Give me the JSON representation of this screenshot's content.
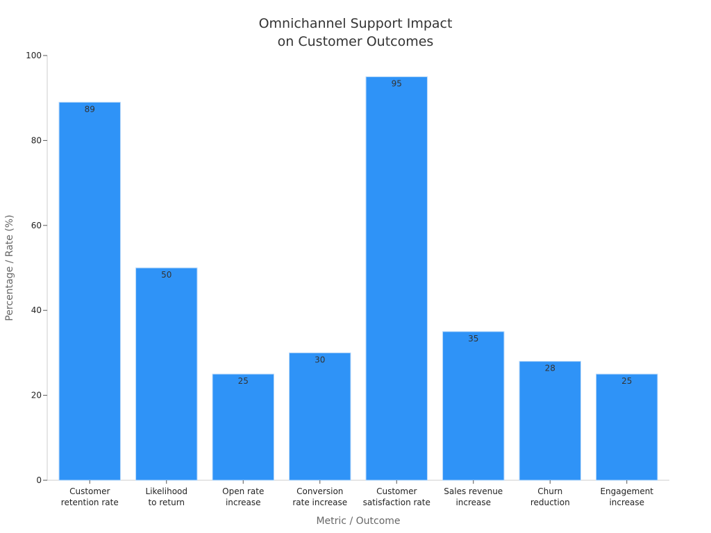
{
  "chart_data": {
    "type": "bar",
    "title_lines": [
      "Omnichannel Support Impact",
      "on Customer Outcomes"
    ],
    "xlabel": "Metric / Outcome",
    "ylabel": "Percentage / Rate (%)",
    "categories": [
      [
        "Customer",
        "retention rate"
      ],
      [
        "Likelihood",
        "to return"
      ],
      [
        "Open rate",
        "increase"
      ],
      [
        "Conversion",
        "rate increase"
      ],
      [
        "Customer",
        "satisfaction rate"
      ],
      [
        "Sales revenue",
        "increase"
      ],
      [
        "Churn",
        "reduction"
      ],
      [
        "Engagement",
        "increase"
      ]
    ],
    "values": [
      89,
      50,
      25,
      30,
      95,
      35,
      28,
      25
    ],
    "ylim": [
      0,
      100
    ],
    "yticks": [
      0,
      20,
      40,
      60,
      80,
      100
    ],
    "grid": false,
    "legend": "none",
    "bar_color": "#2f93f7",
    "bar_edge_color": "#b8d8f8"
  }
}
